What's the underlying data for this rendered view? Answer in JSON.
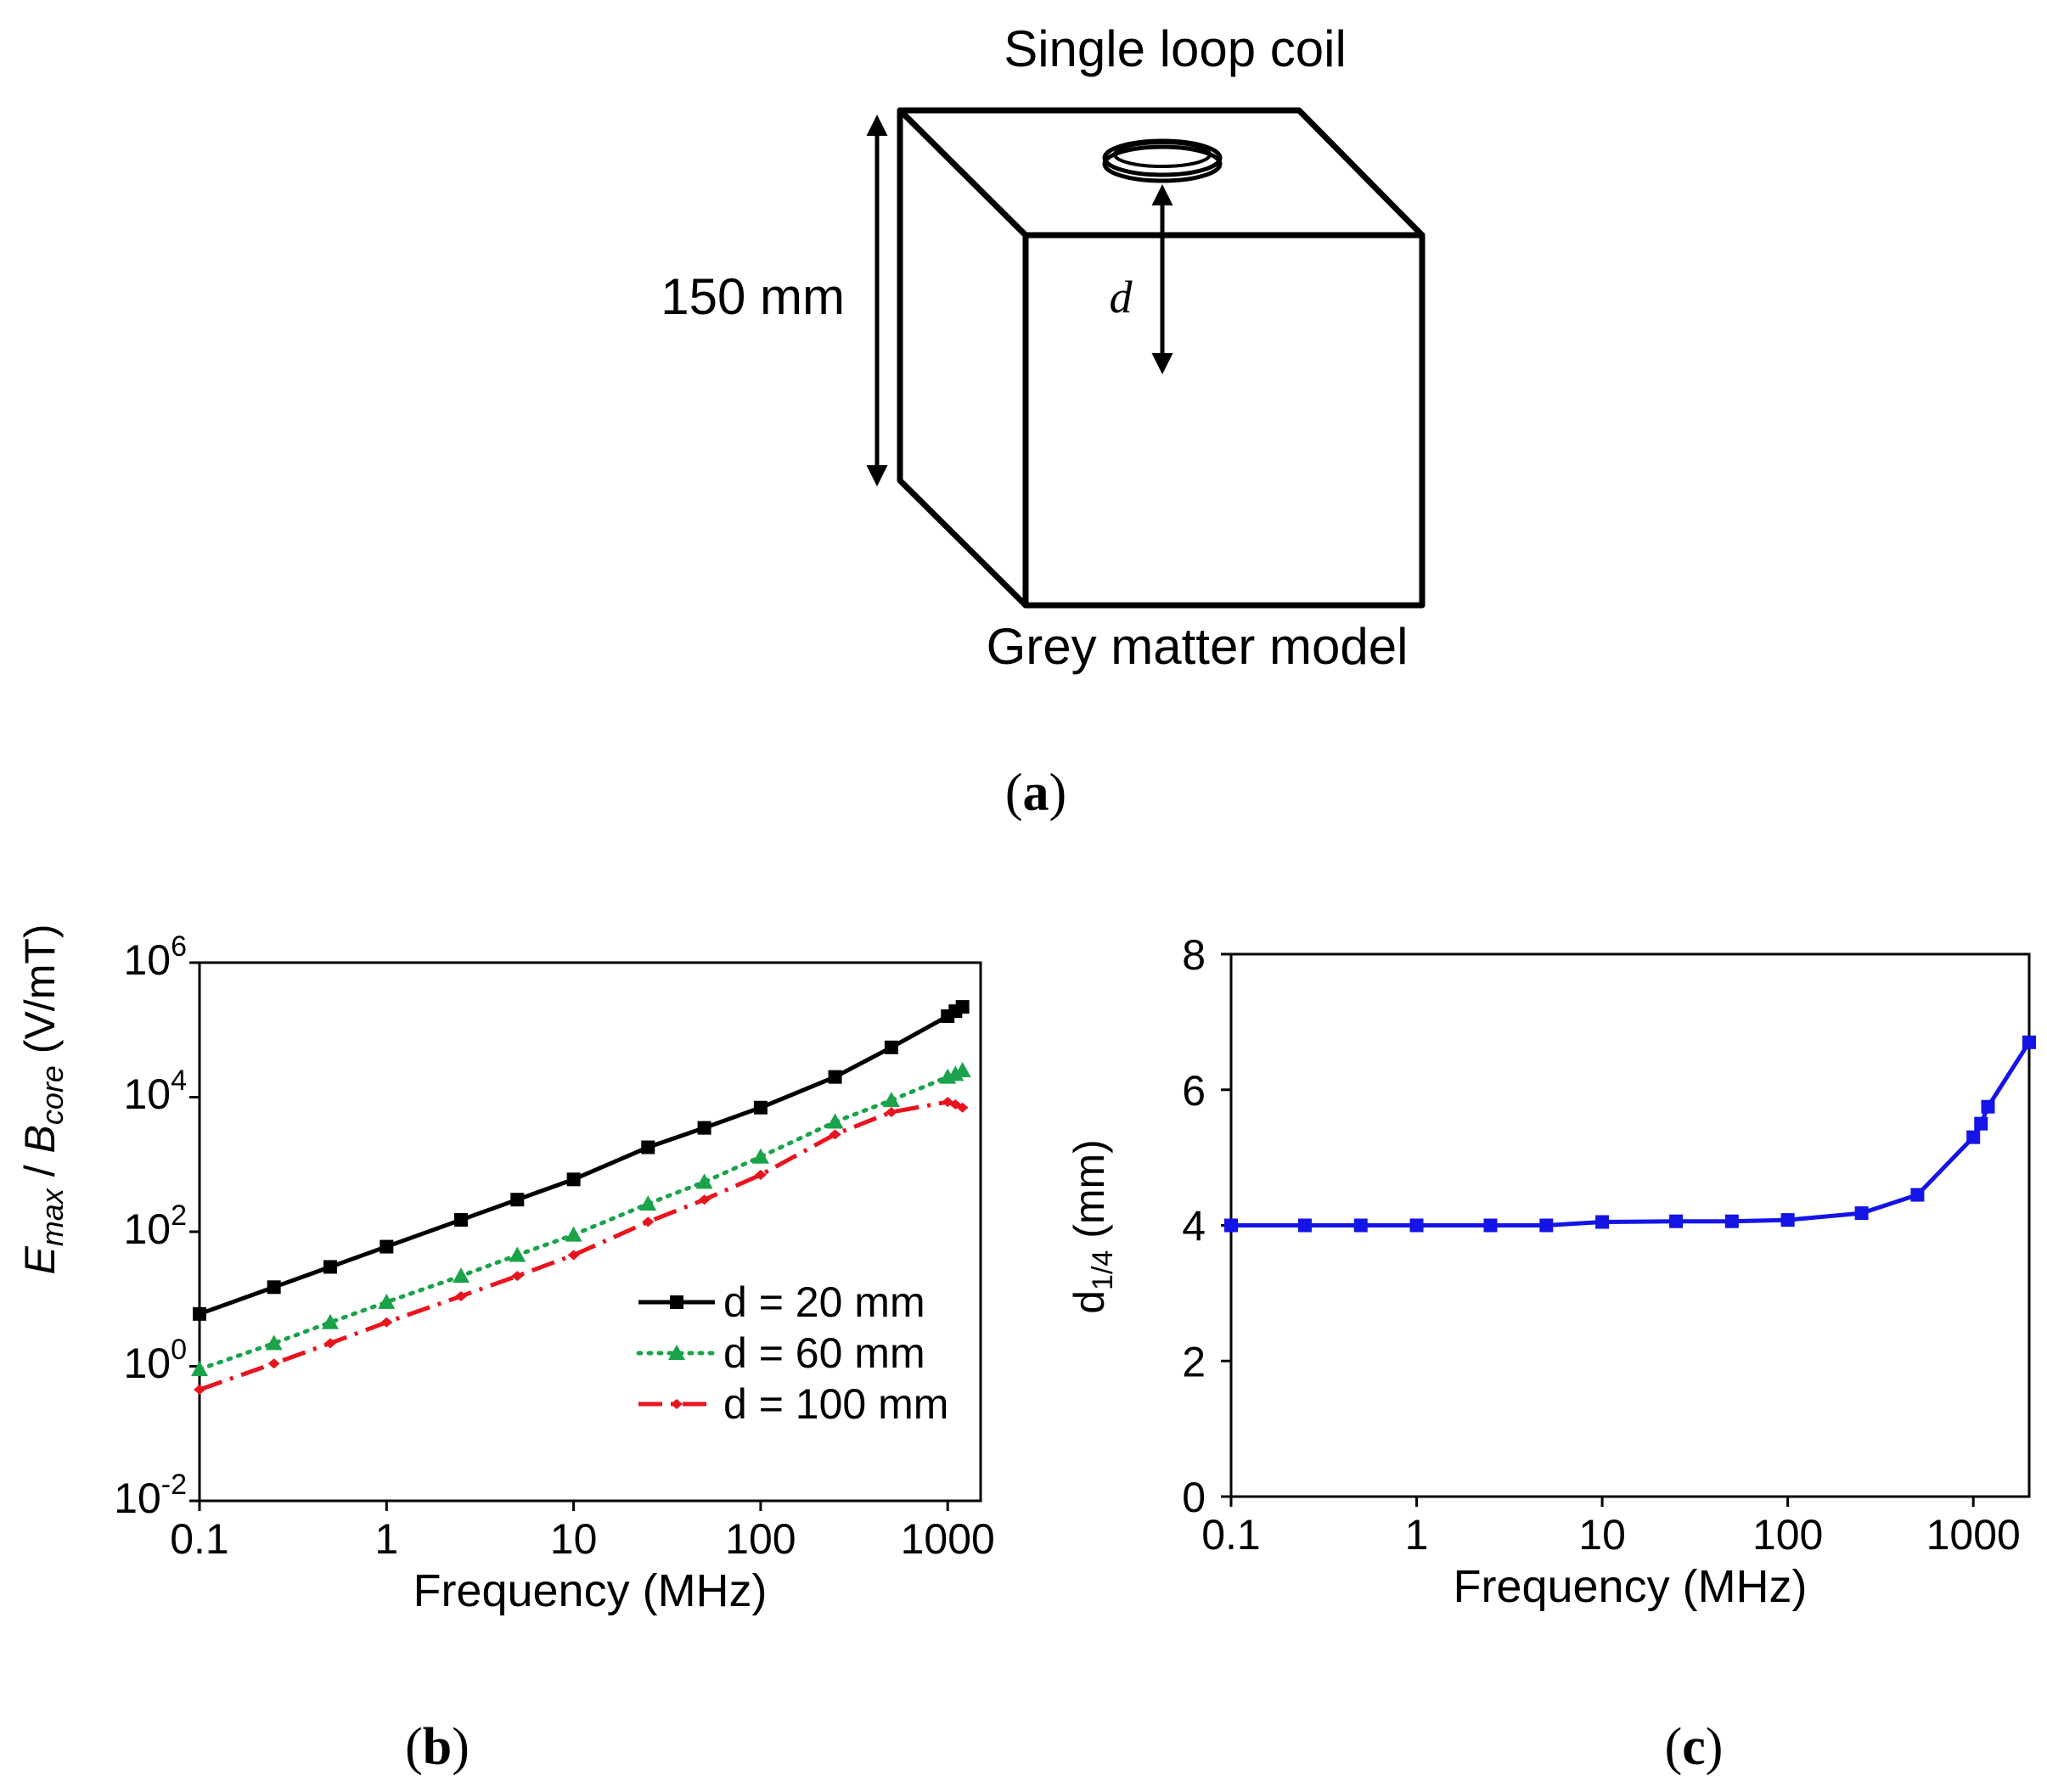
{
  "panel_a": {
    "top_label": "Single loop coil",
    "bottom_label": "Grey matter model",
    "dimension_label": "150 mm",
    "distance_label": "d",
    "caption_open": "(",
    "caption_letter": "a",
    "caption_close": ")"
  },
  "panel_b": {
    "caption_open": "(",
    "caption_letter": "b",
    "caption_close": ")",
    "ylabel": {
      "main1": "E",
      "sub1": "max",
      "sep": " / ",
      "main2": "B",
      "sub2": "core",
      "unit": " (V/mT)"
    },
    "ytick_labels": [
      {
        "base": "10",
        "exp": "6"
      },
      {
        "base": "10",
        "exp": "4"
      },
      {
        "base": "10",
        "exp": "2"
      },
      {
        "base": "10",
        "exp": "0"
      },
      {
        "base": "10",
        "exp": "-2"
      }
    ]
  },
  "panel_c": {
    "caption_open": "(",
    "caption_letter": "c",
    "caption_close": ")",
    "ylabel": {
      "main": "d",
      "sub": "1/4",
      "unit": " (mm)"
    }
  },
  "chart_data": [
    {
      "id": "b",
      "type": "line",
      "xscale": "log",
      "yscale": "log",
      "xlabel": "Frequency (MHz)",
      "xlim": [
        0.1,
        1500
      ],
      "ylim": [
        0.01,
        1000000
      ],
      "xticks": [
        0.1,
        1,
        10,
        100,
        1000
      ],
      "xtick_labels": [
        "0.1",
        "1",
        "10",
        "100",
        "1000"
      ],
      "yticks": [
        1000000,
        10000,
        100,
        1,
        0.01
      ],
      "legend_position": "bottom-right",
      "series": [
        {
          "name": "d = 20 mm",
          "color": "#000000",
          "style": "solid",
          "marker": "square",
          "x": [
            0.1,
            0.25,
            0.5,
            1,
            2.5,
            5,
            10,
            25,
            50,
            100,
            250,
            500,
            1000,
            1100,
            1200
          ],
          "y": [
            6,
            15,
            30,
            60,
            150,
            300,
            600,
            1800,
            3500,
            7000,
            20000,
            55000,
            160000,
            190000,
            220000
          ]
        },
        {
          "name": "d = 60 mm",
          "color": "#1aa34a",
          "style": "dotted",
          "marker": "triangle",
          "x": [
            0.1,
            0.25,
            0.5,
            1,
            2.5,
            5,
            10,
            25,
            50,
            100,
            250,
            500,
            1000,
            1100,
            1200
          ],
          "y": [
            0.9,
            2.2,
            4.5,
            9,
            22,
            45,
            90,
            260,
            550,
            1300,
            4300,
            9000,
            20000,
            22000,
            25000
          ]
        },
        {
          "name": "d = 100 mm",
          "color": "#e8141e",
          "style": "dashdot",
          "marker": "diamond",
          "x": [
            0.1,
            0.25,
            0.5,
            1,
            2.5,
            5,
            10,
            25,
            50,
            100,
            250,
            500,
            1000,
            1100,
            1200
          ],
          "y": [
            0.45,
            1.1,
            2.2,
            4.5,
            11,
            22,
            45,
            140,
            300,
            700,
            2800,
            6000,
            8500,
            7800,
            7000
          ]
        }
      ]
    },
    {
      "id": "c",
      "type": "line",
      "xscale": "log",
      "yscale": "linear",
      "xlabel": "Frequency (MHz)",
      "ylabel": "d1/4 (mm)",
      "xlim": [
        0.1,
        2000
      ],
      "ylim": [
        0,
        8
      ],
      "xticks": [
        0.1,
        1,
        10,
        100,
        1000
      ],
      "xtick_labels": [
        "0.1",
        "1",
        "10",
        "100",
        "1000"
      ],
      "yticks": [
        0,
        2,
        4,
        6,
        8
      ],
      "ytick_labels": [
        "0",
        "2",
        "4",
        "6",
        "8"
      ],
      "series": [
        {
          "name": "d1/4",
          "color": "#1414e6",
          "style": "solid",
          "marker": "square",
          "x": [
            0.1,
            0.25,
            0.5,
            1,
            2.5,
            5,
            10,
            25,
            50,
            100,
            250,
            500,
            1000,
            1100,
            1200,
            2000
          ],
          "y": [
            4.0,
            4.0,
            4.0,
            4.0,
            4.0,
            4.0,
            4.05,
            4.06,
            4.06,
            4.08,
            4.18,
            4.45,
            5.3,
            5.5,
            5.75,
            6.7
          ]
        }
      ]
    }
  ]
}
